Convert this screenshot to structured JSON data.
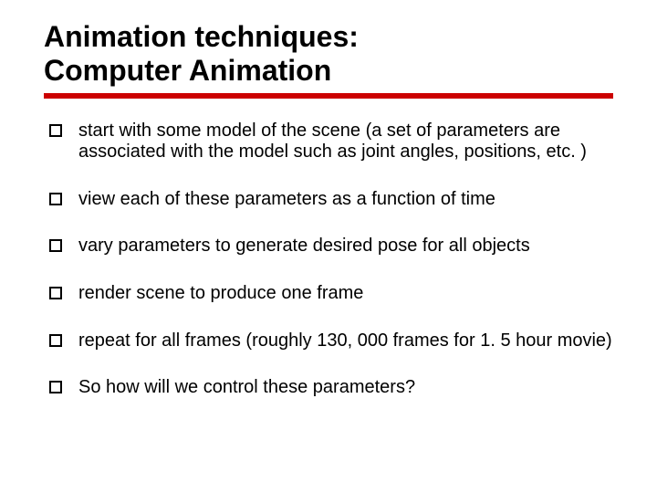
{
  "slide": {
    "title_line1": "Animation techniques:",
    "title_line2": "Computer Animation",
    "title_fontsize": 32,
    "title_color": "#000000",
    "divider_color": "#cc0000",
    "divider_height": 6,
    "background_color": "#ffffff",
    "bullet_marker_size": 14,
    "bullet_marker_border": "#000000",
    "bullet_fontsize": 20,
    "bullet_color": "#000000",
    "bullet_spacing": 28,
    "bullets": [
      "start with some model of the scene (a set of parameters are associated with the model such as joint angles, positions, etc. )",
      "view each of these parameters as a function of time",
      "vary parameters to generate desired pose for all objects",
      "render scene to produce one frame",
      "repeat for all frames (roughly 130, 000 frames for 1. 5 hour movie)",
      "So how will we control these parameters?"
    ]
  }
}
